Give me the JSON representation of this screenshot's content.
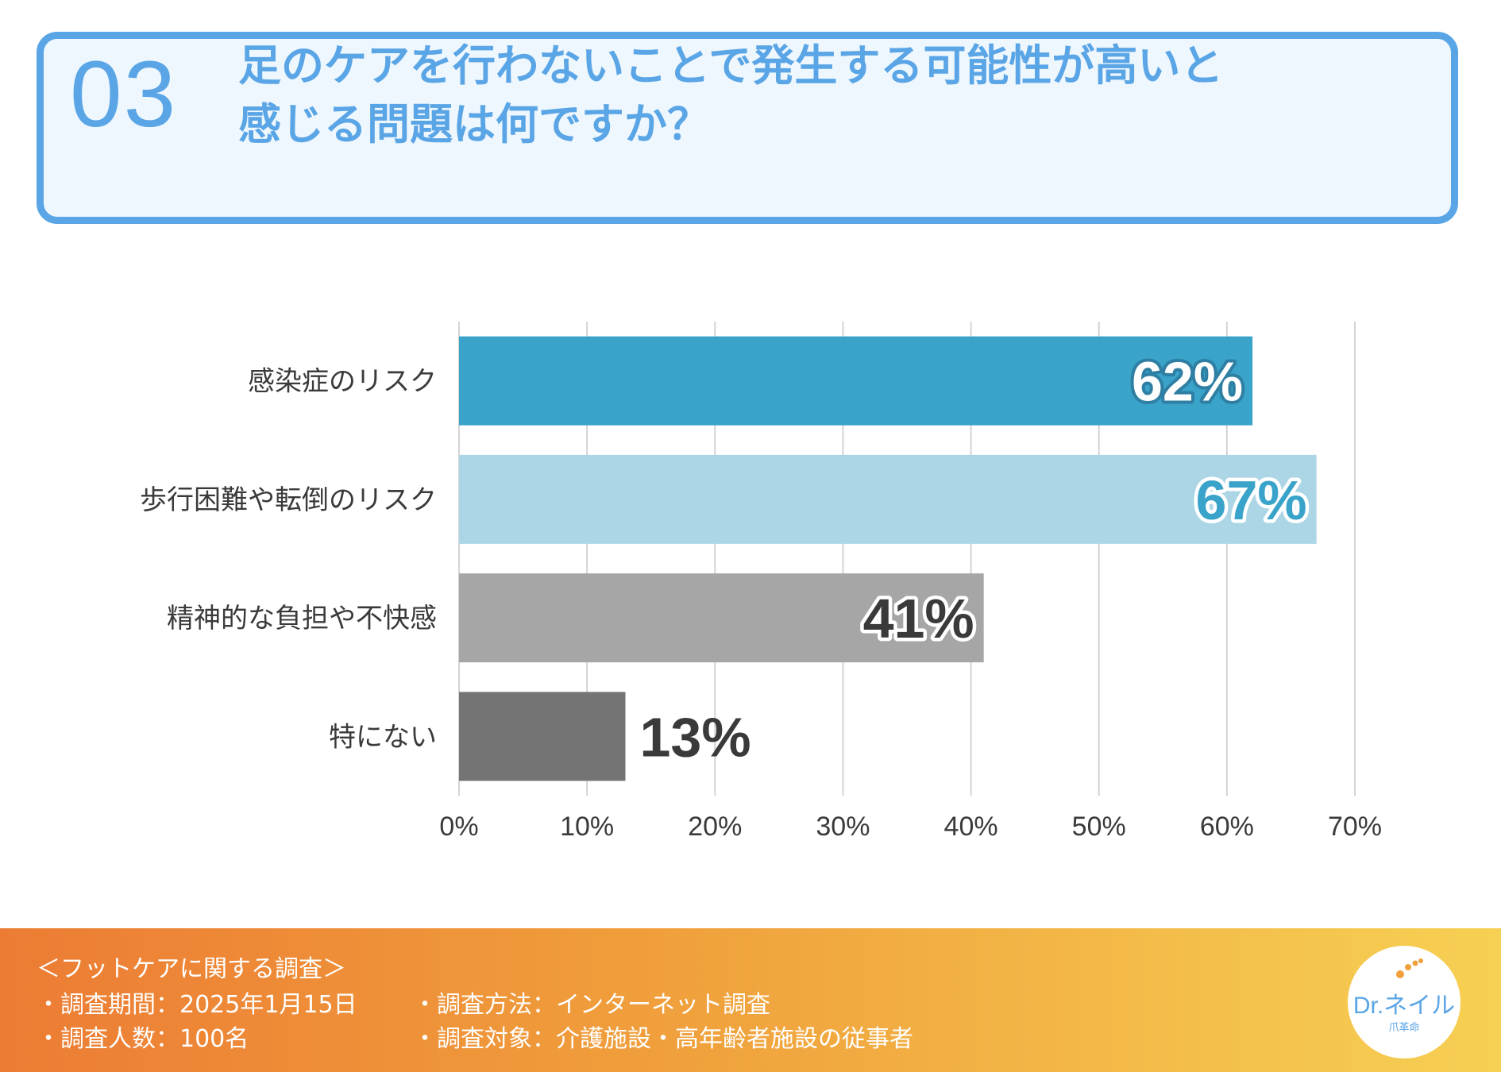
{
  "header": {
    "number": "03",
    "title_line1": "足のケアを行わないことで発生する可能性が高いと",
    "title_line2": "感じる問題は何ですか？"
  },
  "colors": {
    "accent": "#5aa5e6",
    "bars": [
      "#3aa3c9",
      "#acd6e6",
      "#a6a6a6",
      "#747474"
    ],
    "value_text": [
      "#ffffff",
      "#3aa3c9",
      "#3a3a3a",
      "#3a3a3a"
    ]
  },
  "chart_data": {
    "type": "bar",
    "orientation": "horizontal",
    "categories": [
      "感染症のリスク",
      "歩行困難や転倒のリスク",
      "精神的な負担や不快感",
      "特にない"
    ],
    "values": [
      62,
      67,
      41,
      13
    ],
    "value_labels": [
      "62%",
      "67%",
      "41%",
      "13%"
    ],
    "x_ticks": [
      "0%",
      "10%",
      "20%",
      "30%",
      "40%",
      "50%",
      "60%",
      "70%"
    ],
    "xlim": [
      0,
      70
    ],
    "grid": true,
    "title": "足のケアを行わないことで発生する可能性が高いと感じる問題は何ですか？"
  },
  "footer": {
    "title": "＜フットケアに関する調査＞",
    "period": "・調査期間：2025年1月15日",
    "count": "・調査人数：100名",
    "method": "・調査方法：インターネット調査",
    "target": "・調査対象：介護施設・高年齢者施設の従事者"
  },
  "logo": {
    "text": "Dr.ネイル",
    "sub": "爪革命"
  }
}
